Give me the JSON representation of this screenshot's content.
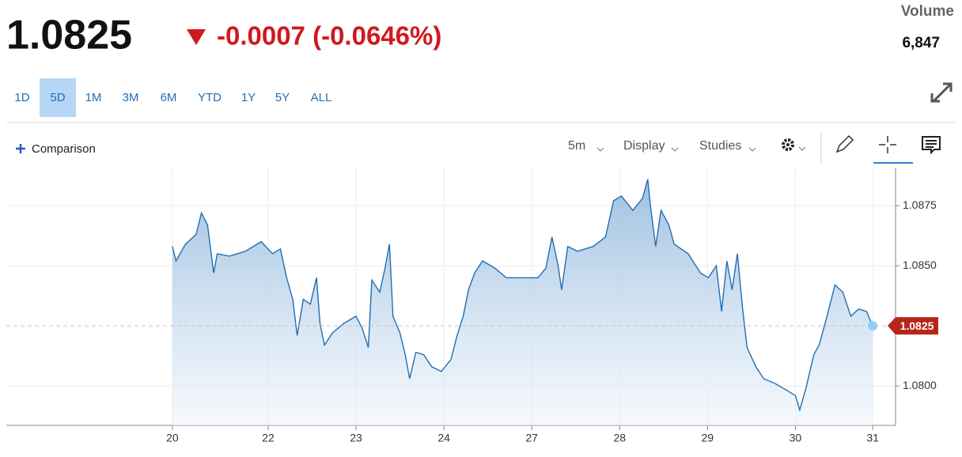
{
  "header": {
    "price": "1.0825",
    "change": "-0.0007 (-0.0646%)",
    "volume_label": "Volume",
    "volume": "6,847"
  },
  "ranges": [
    "1D",
    "5D",
    "1M",
    "3M",
    "6M",
    "YTD",
    "1Y",
    "5Y",
    "ALL"
  ],
  "active_range": "5D",
  "toolbar": {
    "comparison": "Comparison",
    "interval": "5m",
    "display": "Display",
    "studies": "Studies"
  },
  "chart_data": {
    "type": "line",
    "color": "#1f6fb2",
    "x": [
      0,
      0.04,
      0.15,
      0.27,
      0.33,
      0.4,
      0.47,
      0.51,
      0.65,
      0.83,
      1.01,
      1.14,
      1.23,
      1.3,
      1.37,
      1.42,
      1.49,
      1.57,
      1.64,
      1.68,
      1.73,
      1.82,
      1.95,
      2.09,
      2.16,
      2.23,
      2.27,
      2.36,
      2.42,
      2.47,
      2.51,
      2.59,
      2.65,
      2.7,
      2.77,
      2.86,
      2.95,
      3.06,
      3.17,
      3.24,
      3.31,
      3.37,
      3.44,
      3.53,
      3.67,
      3.8,
      4.16,
      4.25,
      4.32,
      4.39,
      4.43,
      4.5,
      4.61,
      4.79,
      4.93,
      5.02,
      5.11,
      5.24,
      5.35,
      5.41,
      5.44,
      5.5,
      5.56,
      5.65,
      5.71,
      5.87,
      6.01,
      6.1,
      6.19,
      6.25,
      6.31,
      6.37,
      6.43,
      6.49,
      6.54,
      6.64,
      6.73,
      6.86,
      7.0,
      7.09,
      7.14,
      7.21,
      7.3,
      7.36,
      7.45,
      7.54,
      7.63,
      7.72,
      7.81,
      7.9,
      7.97
    ],
    "values": [
      1.0858,
      1.0852,
      1.0859,
      1.0863,
      1.0872,
      1.0867,
      1.0847,
      1.0855,
      1.0854,
      1.0856,
      1.086,
      1.0855,
      1.0857,
      1.0845,
      1.0836,
      1.0821,
      1.0836,
      1.0834,
      1.0845,
      1.0826,
      1.0817,
      1.0822,
      1.0826,
      1.0829,
      1.0824,
      1.0816,
      1.0844,
      1.0839,
      1.0849,
      1.0859,
      1.0829,
      1.0822,
      1.0813,
      1.0803,
      1.0814,
      1.0813,
      1.0808,
      1.0806,
      1.0811,
      1.0821,
      1.0829,
      1.084,
      1.0847,
      1.0852,
      1.0849,
      1.0845,
      1.0845,
      1.0849,
      1.0862,
      1.085,
      1.084,
      1.0858,
      1.0856,
      1.0858,
      1.0862,
      1.0877,
      1.0879,
      1.0873,
      1.0878,
      1.0886,
      1.0875,
      1.0858,
      1.0873,
      1.0867,
      1.0859,
      1.0855,
      1.0847,
      1.0845,
      1.085,
      1.0831,
      1.0852,
      1.084,
      1.0855,
      1.0832,
      1.0816,
      1.0808,
      1.0803,
      1.0801,
      1.0798,
      1.0796,
      1.079,
      1.0799,
      1.0813,
      1.0817,
      1.0829,
      1.0842,
      1.0839,
      1.0829,
      1.0832,
      1.0831,
      1.0825
    ],
    "last_value": 1.0825,
    "xlim": [
      -1.89,
      8.23
    ],
    "xticks": [
      {
        "value": 0,
        "label": "20"
      },
      {
        "value": 1.09,
        "label": "22"
      },
      {
        "value": 2.09,
        "label": "23"
      },
      {
        "value": 3.09,
        "label": "24"
      },
      {
        "value": 4.09,
        "label": "27"
      },
      {
        "value": 5.09,
        "label": "28"
      },
      {
        "value": 6.09,
        "label": "29"
      },
      {
        "value": 7.09,
        "label": "30"
      },
      {
        "value": 7.97,
        "label": "31"
      }
    ],
    "ylim": [
      1.07836,
      1.08908
    ],
    "yticks": [
      {
        "value": 1.08,
        "label": "1.0800"
      },
      {
        "value": 1.085,
        "label": "1.0850"
      },
      1.0875
    ],
    "grid": true
  }
}
